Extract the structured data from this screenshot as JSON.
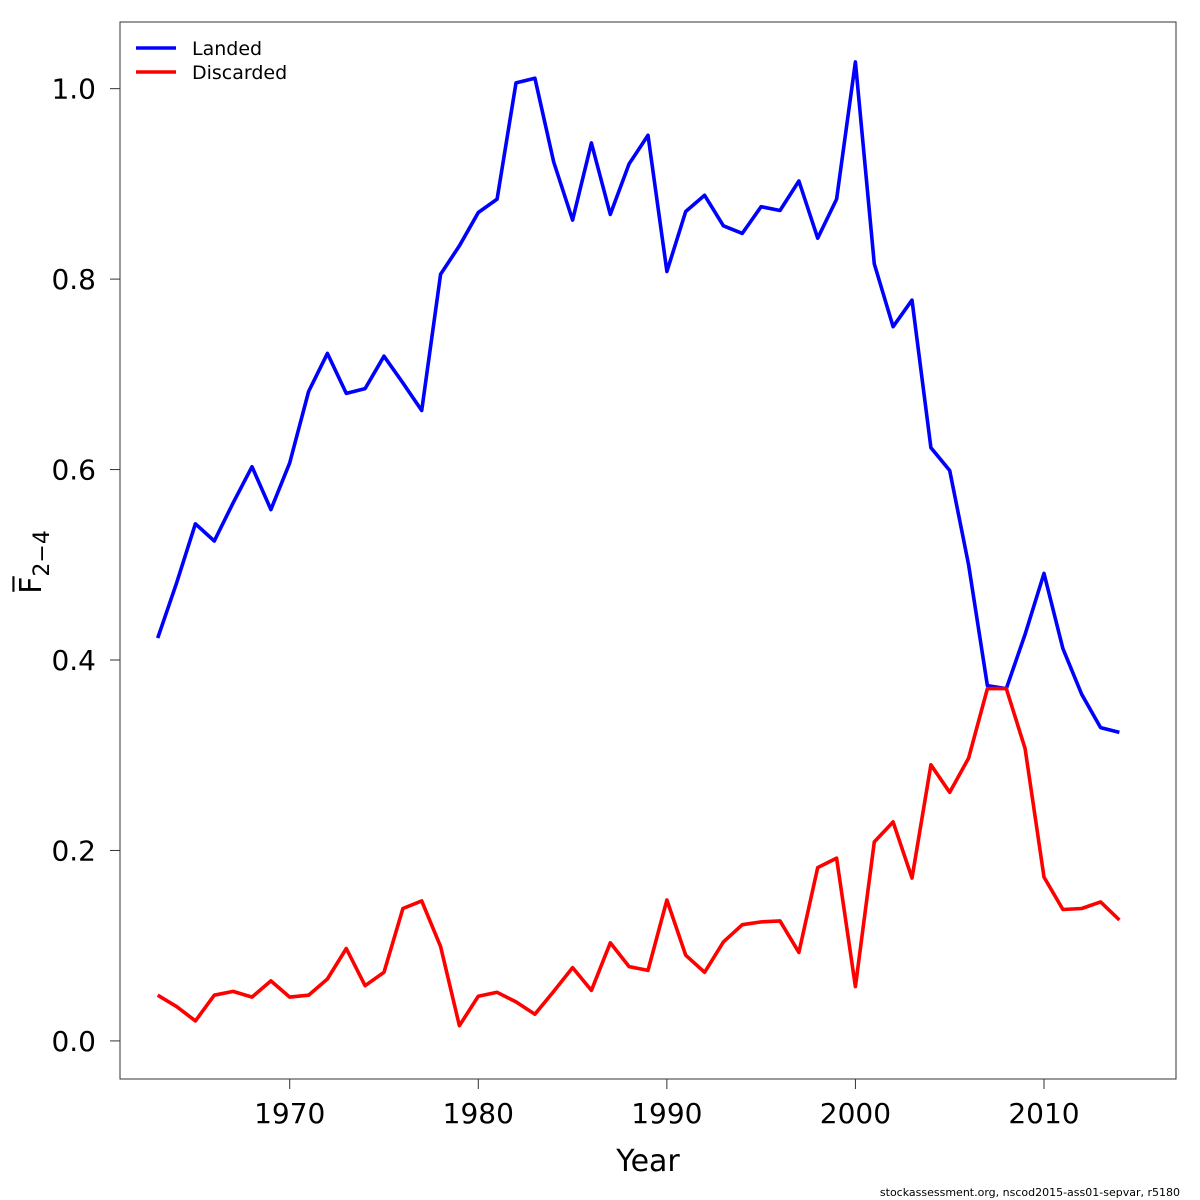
{
  "chart_data": {
    "type": "line",
    "xlabel": "Year",
    "ylabel": "F̅2−4",
    "ylabel_main": "F̅",
    "ylabel_sub": "2−4",
    "xlim": [
      1961,
      2017
    ],
    "ylim": [
      -0.04,
      1.07
    ],
    "xticks": [
      1970,
      1980,
      1990,
      2000,
      2010
    ],
    "yticks": [
      0.0,
      0.2,
      0.4,
      0.6,
      0.8,
      1.0
    ],
    "ytick_labels": [
      "0.0",
      "0.2",
      "0.4",
      "0.6",
      "0.8",
      "1.0"
    ],
    "grid": false,
    "legend_position": "top-left",
    "x": [
      1963,
      1964,
      1965,
      1966,
      1967,
      1968,
      1969,
      1970,
      1971,
      1972,
      1973,
      1974,
      1975,
      1976,
      1977,
      1978,
      1979,
      1980,
      1981,
      1982,
      1983,
      1984,
      1985,
      1986,
      1987,
      1988,
      1989,
      1990,
      1991,
      1992,
      1993,
      1994,
      1995,
      1996,
      1997,
      1998,
      1999,
      2000,
      2001,
      2002,
      2003,
      2004,
      2005,
      2006,
      2007,
      2008,
      2009,
      2010,
      2011,
      2012,
      2013,
      2014
    ],
    "series": [
      {
        "name": "Landed",
        "color": "#0000ff",
        "values": [
          0.423,
          0.481,
          0.543,
          0.525,
          0.565,
          0.603,
          0.558,
          0.607,
          0.682,
          0.722,
          0.68,
          0.685,
          0.719,
          0.691,
          0.662,
          0.805,
          0.835,
          0.87,
          0.884,
          1.006,
          1.011,
          0.923,
          0.862,
          0.943,
          0.868,
          0.921,
          0.951,
          0.808,
          0.871,
          0.888,
          0.856,
          0.848,
          0.876,
          0.872,
          0.903,
          0.843,
          0.884,
          1.028,
          0.816,
          0.75,
          0.778,
          0.623,
          0.599,
          0.5,
          0.373,
          0.37,
          0.427,
          0.491,
          0.412,
          0.364,
          0.329,
          0.324
        ]
      },
      {
        "name": "Discarded",
        "color": "#ff0000",
        "values": [
          0.048,
          0.036,
          0.021,
          0.048,
          0.052,
          0.046,
          0.063,
          0.046,
          0.048,
          0.065,
          0.097,
          0.058,
          0.072,
          0.139,
          0.147,
          0.099,
          0.016,
          0.047,
          0.051,
          0.041,
          0.028,
          0.052,
          0.077,
          0.053,
          0.103,
          0.078,
          0.074,
          0.148,
          0.09,
          0.072,
          0.104,
          0.122,
          0.125,
          0.126,
          0.093,
          0.182,
          0.192,
          0.057,
          0.209,
          0.23,
          0.171,
          0.29,
          0.261,
          0.297,
          0.37,
          0.37,
          0.307,
          0.172,
          0.138,
          0.139,
          0.146,
          0.127
        ]
      }
    ]
  },
  "footer": {
    "credit": "stockassessment.org, nscod2015-ass01-sepvar, r5180"
  }
}
